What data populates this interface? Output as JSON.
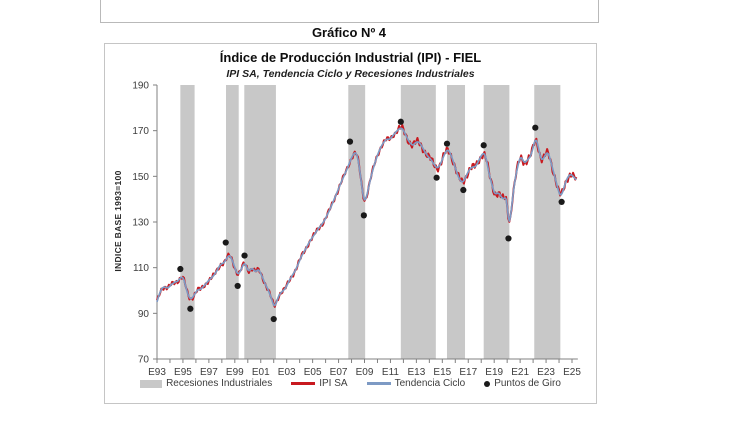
{
  "window": {
    "outer_title": "Gráfico Nº 4"
  },
  "chart": {
    "title": "Índice de Producción Industrial (IPI) - FIEL",
    "subtitle": "IPI SA, Tendencia Ciclo y Recesiones Industriales",
    "y_axis_label": "INDICE BASE 1993=100"
  },
  "legend": {
    "items": [
      {
        "label": "Recesiones Industriales",
        "swatch": "box",
        "color": "#c8c8c8"
      },
      {
        "label": "IPI SA",
        "swatch": "line",
        "color": "#c8191f"
      },
      {
        "label": "Tendencia Ciclo",
        "swatch": "line",
        "color": "#7d9ac4"
      },
      {
        "label": "Puntos de Giro",
        "swatch": "dot",
        "color": "#1a1a1a"
      }
    ]
  },
  "chart_data": {
    "type": "line",
    "title": "Índice de Producción Industrial (IPI) - FIEL",
    "subtitle": "IPI SA, Tendencia Ciclo y Recesiones Industriales",
    "xlabel": "",
    "ylabel": "INDICE BASE 1993=100",
    "ylim": [
      70,
      190
    ],
    "yticks": [
      70,
      90,
      110,
      130,
      150,
      170,
      190
    ],
    "xlim_years": [
      1993,
      2025.5
    ],
    "xtick_minor_interval_years": 1,
    "xticks": [
      [
        1993,
        "E93"
      ],
      [
        1995,
        "E95"
      ],
      [
        1997,
        "E97"
      ],
      [
        1999,
        "E99"
      ],
      [
        2001,
        "E01"
      ],
      [
        2003,
        "E03"
      ],
      [
        2005,
        "E05"
      ],
      [
        2007,
        "E07"
      ],
      [
        2009,
        "E09"
      ],
      [
        2011,
        "E11"
      ],
      [
        2013,
        "E13"
      ],
      [
        2015,
        "E15"
      ],
      [
        2017,
        "E17"
      ],
      [
        2019,
        "E19"
      ],
      [
        2021,
        "E21"
      ],
      [
        2023,
        "E23"
      ],
      [
        2025,
        "E25"
      ]
    ],
    "grid": false,
    "legend_position": "bottom",
    "colors": {
      "recession_band": "#c8c8c8",
      "ipi_sa": "#c8191f",
      "tendencia_ciclo": "#7d9ac4",
      "puntos_de_giro": "#1a1a1a",
      "axis": "#808080",
      "tick_text": "#3d3d3d"
    },
    "recessions_industriales": [
      [
        1994.8,
        1995.9
      ],
      [
        1998.32,
        1999.3
      ],
      [
        1999.73,
        2002.17
      ],
      [
        2007.75,
        2009.05
      ],
      [
        2011.8,
        2014.5
      ],
      [
        2015.36,
        2016.75
      ],
      [
        2018.19,
        2020.17
      ],
      [
        2022.09,
        2024.1
      ]
    ],
    "puntos_de_giro": [
      {
        "year": 1994.8,
        "value": 109.4,
        "kind": "peak"
      },
      {
        "year": 1995.57,
        "value": 92.0,
        "kind": "trough"
      },
      {
        "year": 1998.3,
        "value": 121.0,
        "kind": "peak"
      },
      {
        "year": 1999.22,
        "value": 102.0,
        "kind": "trough"
      },
      {
        "year": 1999.75,
        "value": 115.3,
        "kind": "peak"
      },
      {
        "year": 2002.0,
        "value": 87.5,
        "kind": "trough"
      },
      {
        "year": 2007.88,
        "value": 165.2,
        "kind": "peak"
      },
      {
        "year": 2008.95,
        "value": 132.9,
        "kind": "trough"
      },
      {
        "year": 2011.8,
        "value": 173.9,
        "kind": "peak"
      },
      {
        "year": 2014.56,
        "value": 149.4,
        "kind": "trough"
      },
      {
        "year": 2015.36,
        "value": 164.3,
        "kind": "peak"
      },
      {
        "year": 2016.62,
        "value": 144.0,
        "kind": "trough"
      },
      {
        "year": 2018.19,
        "value": 163.6,
        "kind": "peak"
      },
      {
        "year": 2020.1,
        "value": 122.8,
        "kind": "trough"
      },
      {
        "year": 2022.17,
        "value": 171.3,
        "kind": "peak"
      },
      {
        "year": 2024.2,
        "value": 138.8,
        "kind": "trough"
      }
    ],
    "series": [
      {
        "name": "IPI SA",
        "color": "#c8191f",
        "derivation": "tendencia_ciclo plus seasonal-adjusted monthly oscillation",
        "noise": {
          "base_amplitude": 1.15,
          "post_2011_amplitude": 1.85
        }
      },
      {
        "name": "Tendencia Ciclo",
        "color": "#7d9ac4"
      }
    ],
    "tendencia_ciclo_points": [
      [
        1993.0,
        95.0
      ],
      [
        1993.2,
        99.0
      ],
      [
        1993.4,
        101.3
      ],
      [
        1993.6,
        101.8
      ],
      [
        1993.8,
        100.8
      ],
      [
        1994.0,
        101.8
      ],
      [
        1994.15,
        103.2
      ],
      [
        1994.3,
        103.0
      ],
      [
        1994.45,
        104.3
      ],
      [
        1994.6,
        103.6
      ],
      [
        1994.75,
        105.3
      ],
      [
        1994.95,
        106.2
      ],
      [
        1995.1,
        105.0
      ],
      [
        1995.3,
        99.5
      ],
      [
        1995.5,
        96.5
      ],
      [
        1995.65,
        96.0
      ],
      [
        1995.85,
        97.8
      ],
      [
        1996.05,
        99.8
      ],
      [
        1996.2,
        100.8
      ],
      [
        1996.35,
        100.2
      ],
      [
        1996.55,
        101.6
      ],
      [
        1996.75,
        102.8
      ],
      [
        1996.95,
        104.2
      ],
      [
        1997.15,
        105.3
      ],
      [
        1997.35,
        106.3
      ],
      [
        1997.55,
        108.0
      ],
      [
        1997.75,
        110.0
      ],
      [
        1997.95,
        112.0
      ],
      [
        1998.15,
        111.8
      ],
      [
        1998.35,
        113.8
      ],
      [
        1998.55,
        115.8
      ],
      [
        1998.7,
        115.0
      ],
      [
        1998.85,
        112.5
      ],
      [
        1999.0,
        110.0
      ],
      [
        1999.2,
        106.8
      ],
      [
        1999.35,
        107.3
      ],
      [
        1999.5,
        109.3
      ],
      [
        1999.65,
        111.5
      ],
      [
        1999.8,
        112.5
      ],
      [
        2000.05,
        107.8
      ],
      [
        2000.35,
        110.2
      ],
      [
        2000.6,
        107.8
      ],
      [
        2000.85,
        109.6
      ],
      [
        2001.1,
        106.3
      ],
      [
        2001.35,
        102.7
      ],
      [
        2001.6,
        100.0
      ],
      [
        2001.9,
        95.4
      ],
      [
        2002.05,
        91.8
      ],
      [
        2002.2,
        94.5
      ],
      [
        2002.4,
        98.2
      ],
      [
        2002.7,
        99.8
      ],
      [
        2002.95,
        101.2
      ],
      [
        2003.2,
        104.5
      ],
      [
        2003.45,
        106.8
      ],
      [
        2003.7,
        109.0
      ],
      [
        2003.95,
        112.5
      ],
      [
        2004.2,
        115.8
      ],
      [
        2004.45,
        118.0
      ],
      [
        2004.7,
        120.8
      ],
      [
        2004.95,
        123.0
      ],
      [
        2005.2,
        125.0
      ],
      [
        2005.45,
        127.3
      ],
      [
        2005.7,
        128.8
      ],
      [
        2005.95,
        131.0
      ],
      [
        2006.2,
        134.0
      ],
      [
        2006.45,
        137.0
      ],
      [
        2006.7,
        140.5
      ],
      [
        2006.95,
        143.8
      ],
      [
        2007.2,
        147.5
      ],
      [
        2007.45,
        150.5
      ],
      [
        2007.7,
        153.8
      ],
      [
        2007.95,
        157.5
      ],
      [
        2008.15,
        159.8
      ],
      [
        2008.3,
        161.0
      ],
      [
        2008.45,
        159.5
      ],
      [
        2008.6,
        154.5
      ],
      [
        2008.75,
        147.5
      ],
      [
        2008.9,
        141.0
      ],
      [
        2009.0,
        138.0
      ],
      [
        2009.15,
        140.5
      ],
      [
        2009.35,
        146.0
      ],
      [
        2009.55,
        151.0
      ],
      [
        2009.75,
        155.0
      ],
      [
        2009.95,
        158.5
      ],
      [
        2010.15,
        161.5
      ],
      [
        2010.35,
        163.8
      ],
      [
        2010.55,
        165.5
      ],
      [
        2010.75,
        166.5
      ],
      [
        2010.95,
        166.0
      ],
      [
        2011.15,
        167.5
      ],
      [
        2011.35,
        169.0
      ],
      [
        2011.55,
        170.2
      ],
      [
        2011.75,
        171.2
      ],
      [
        2011.95,
        171.0
      ],
      [
        2012.15,
        168.5
      ],
      [
        2012.35,
        166.0
      ],
      [
        2012.55,
        164.3
      ],
      [
        2012.75,
        163.3
      ],
      [
        2012.95,
        165.0
      ],
      [
        2013.15,
        165.3
      ],
      [
        2013.35,
        164.0
      ],
      [
        2013.55,
        161.8
      ],
      [
        2013.75,
        159.8
      ],
      [
        2013.95,
        158.3
      ],
      [
        2014.15,
        157.3
      ],
      [
        2014.35,
        155.3
      ],
      [
        2014.55,
        153.6
      ],
      [
        2014.7,
        153.6
      ],
      [
        2014.9,
        155.8
      ],
      [
        2015.1,
        158.8
      ],
      [
        2015.3,
        161.3
      ],
      [
        2015.45,
        162.0
      ],
      [
        2015.65,
        159.8
      ],
      [
        2015.85,
        156.5
      ],
      [
        2016.05,
        152.8
      ],
      [
        2016.25,
        149.5
      ],
      [
        2016.45,
        147.5
      ],
      [
        2016.6,
        147.2
      ],
      [
        2016.8,
        149.5
      ],
      [
        2017.0,
        152.2
      ],
      [
        2017.2,
        153.8
      ],
      [
        2017.4,
        154.3
      ],
      [
        2017.55,
        153.8
      ],
      [
        2017.75,
        156.2
      ],
      [
        2017.95,
        158.5
      ],
      [
        2018.1,
        160.0
      ],
      [
        2018.25,
        160.4
      ],
      [
        2018.4,
        157.8
      ],
      [
        2018.55,
        152.8
      ],
      [
        2018.7,
        148.5
      ],
      [
        2018.85,
        146.3
      ],
      [
        2019.0,
        142.3
      ],
      [
        2019.15,
        142.0
      ],
      [
        2019.3,
        143.0
      ],
      [
        2019.45,
        142.3
      ],
      [
        2019.6,
        140.3
      ],
      [
        2019.75,
        139.8
      ],
      [
        2019.9,
        141.3
      ],
      [
        2020.0,
        140.0
      ],
      [
        2020.1,
        130.0
      ],
      [
        2020.17,
        126.2
      ],
      [
        2020.3,
        133.5
      ],
      [
        2020.45,
        142.5
      ],
      [
        2020.6,
        148.5
      ],
      [
        2020.75,
        152.8
      ],
      [
        2020.9,
        156.5
      ],
      [
        2021.05,
        159.5
      ],
      [
        2021.2,
        157.3
      ],
      [
        2021.35,
        155.5
      ],
      [
        2021.5,
        156.5
      ],
      [
        2021.65,
        158.0
      ],
      [
        2021.8,
        158.3
      ],
      [
        2021.95,
        161.3
      ],
      [
        2022.1,
        165.0
      ],
      [
        2022.2,
        167.5
      ],
      [
        2022.35,
        164.8
      ],
      [
        2022.5,
        159.8
      ],
      [
        2022.65,
        156.5
      ],
      [
        2022.8,
        157.5
      ],
      [
        2022.95,
        159.5
      ],
      [
        2023.1,
        161.0
      ],
      [
        2023.25,
        159.3
      ],
      [
        2023.4,
        155.8
      ],
      [
        2023.55,
        152.3
      ],
      [
        2023.7,
        149.3
      ],
      [
        2023.85,
        146.0
      ],
      [
        2024.0,
        142.5
      ],
      [
        2024.15,
        140.8
      ],
      [
        2024.3,
        143.2
      ],
      [
        2024.45,
        146.5
      ],
      [
        2024.6,
        149.0
      ],
      [
        2024.75,
        150.3
      ],
      [
        2024.9,
        151.2
      ],
      [
        2025.05,
        150.3
      ],
      [
        2025.2,
        149.2
      ],
      [
        2025.35,
        148.5
      ]
    ]
  }
}
